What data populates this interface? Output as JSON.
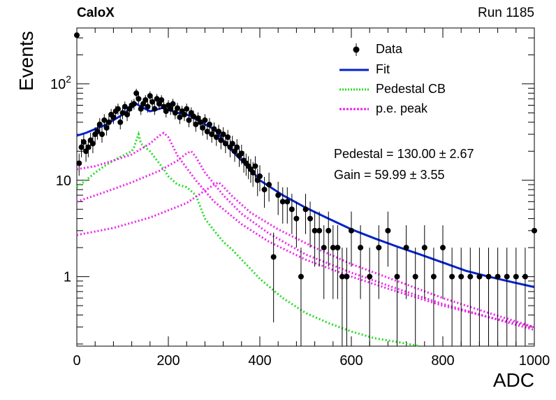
{
  "header": {
    "experiment": "CaloX",
    "run": "Run 1185"
  },
  "stats": {
    "pedestal": "Pedestal = 130.00 ± 2.67",
    "gain": "Gain = 59.99 ± 3.55"
  },
  "colors": {
    "data": "#000000",
    "fit": "#0022cc",
    "pedestal": "#22dd22",
    "pe": "#ee22ee"
  },
  "chart_data": {
    "type": "scatter",
    "xlabel": "ADC",
    "ylabel": "Events",
    "xlim": [
      0,
      1000
    ],
    "ylim": [
      0.19,
      380
    ],
    "y_scale": "log",
    "x_ticks": [
      0,
      200,
      400,
      600,
      800,
      1000
    ],
    "x_tick_labels": [
      "0",
      "200",
      "400",
      "600",
      "800",
      "1000"
    ],
    "y_ticks": [
      1,
      10,
      100
    ],
    "y_tick_labels": [
      "1",
      "10",
      "10²"
    ],
    "legend": {
      "position": "top-right",
      "entries": [
        {
          "label": "Data",
          "style": "marker-errorbar"
        },
        {
          "label": "Fit",
          "style": "solid-line"
        },
        {
          "label": "Pedestal CB",
          "style": "dotted-line"
        },
        {
          "label": "p.e. peak",
          "style": "dotted-line"
        }
      ]
    },
    "series": [
      {
        "name": "Data",
        "kind": "points",
        "x": [
          0,
          5,
          10,
          15,
          20,
          25,
          30,
          35,
          40,
          45,
          50,
          55,
          60,
          65,
          70,
          75,
          80,
          85,
          90,
          95,
          100,
          105,
          110,
          115,
          120,
          125,
          130,
          135,
          140,
          145,
          150,
          155,
          160,
          165,
          170,
          175,
          180,
          185,
          190,
          195,
          200,
          205,
          210,
          215,
          220,
          225,
          230,
          235,
          240,
          245,
          250,
          255,
          260,
          265,
          270,
          275,
          280,
          285,
          290,
          295,
          300,
          305,
          310,
          315,
          320,
          325,
          330,
          335,
          340,
          345,
          350,
          355,
          360,
          365,
          370,
          375,
          380,
          385,
          390,
          395,
          400,
          410,
          420,
          430,
          440,
          450,
          460,
          470,
          480,
          490,
          500,
          510,
          520,
          530,
          540,
          550,
          560,
          570,
          580,
          590,
          600,
          620,
          640,
          660,
          680,
          700,
          720,
          740,
          760,
          780,
          800,
          820,
          840,
          860,
          880,
          900,
          920,
          940,
          960,
          980,
          1000
        ],
        "y": [
          320,
          15,
          22,
          25,
          20,
          22,
          26,
          24,
          30,
          32,
          38,
          30,
          42,
          35,
          40,
          48,
          45,
          52,
          55,
          40,
          50,
          58,
          48,
          55,
          60,
          62,
          80,
          70,
          55,
          62,
          68,
          58,
          75,
          65,
          55,
          70,
          62,
          68,
          58,
          52,
          60,
          55,
          62,
          50,
          56,
          45,
          52,
          48,
          55,
          42,
          50,
          46,
          38,
          44,
          40,
          35,
          42,
          32,
          38,
          30,
          34,
          28,
          32,
          26,
          30,
          24,
          28,
          22,
          24,
          20,
          22,
          18,
          19,
          16,
          15,
          14,
          13,
          12,
          14,
          10,
          11,
          8,
          9,
          1.6,
          7,
          6,
          6,
          5,
          4,
          1,
          5,
          4,
          3,
          3,
          2,
          3,
          2,
          2,
          1,
          1,
          3,
          2,
          1,
          2,
          3,
          1,
          2,
          1,
          2,
          1,
          2,
          1,
          1,
          1,
          1,
          1,
          1,
          1,
          1,
          1,
          3
        ]
      },
      {
        "name": "Fit",
        "kind": "line",
        "x": [
          0,
          20,
          40,
          60,
          80,
          100,
          120,
          130,
          140,
          160,
          180,
          190,
          200,
          220,
          240,
          250,
          260,
          280,
          300,
          310,
          320,
          340,
          360,
          380,
          400,
          450,
          500,
          550,
          600,
          650,
          700,
          750,
          800,
          850,
          900,
          950,
          1000
        ],
        "y": [
          29,
          31,
          34,
          37,
          42,
          48,
          57,
          62,
          58,
          52,
          55,
          57,
          54,
          50,
          48,
          46,
          43,
          38,
          34,
          30,
          26,
          20,
          16,
          13,
          10,
          7,
          5.2,
          4.0,
          3.1,
          2.5,
          2.05,
          1.7,
          1.4,
          1.15,
          1.0,
          0.88,
          0.78
        ]
      },
      {
        "name": "Pedestal CB",
        "kind": "dotted",
        "x": [
          0,
          20,
          40,
          60,
          80,
          100,
          120,
          125,
          130,
          135,
          140,
          160,
          180,
          190,
          200,
          220,
          240,
          260,
          280,
          300,
          320,
          340,
          360,
          380,
          400,
          450,
          500,
          550,
          600,
          650,
          700,
          750
        ],
        "y": [
          8.5,
          10,
          12,
          14,
          16,
          18,
          20,
          22,
          26,
          30,
          24,
          20,
          15,
          13,
          11,
          9,
          8.5,
          7,
          4,
          3,
          2.3,
          1.9,
          1.5,
          1.2,
          0.95,
          0.6,
          0.42,
          0.33,
          0.27,
          0.23,
          0.21,
          0.19
        ]
      },
      {
        "name": "p.e. peak 1",
        "kind": "dotted",
        "x": [
          0,
          40,
          80,
          120,
          160,
          180,
          190,
          200,
          220,
          260,
          300,
          360,
          420,
          500,
          600,
          700,
          800,
          900,
          1000
        ],
        "y": [
          13,
          14,
          16,
          18.5,
          24,
          29,
          31,
          28,
          18,
          10,
          6,
          3.5,
          2.3,
          1.5,
          1.0,
          0.7,
          0.5,
          0.38,
          0.3
        ]
      },
      {
        "name": "p.e. peak 2",
        "kind": "dotted",
        "x": [
          0,
          60,
          120,
          180,
          220,
          240,
          250,
          260,
          280,
          320,
          360,
          420,
          500,
          600,
          700,
          800,
          900,
          1000
        ],
        "y": [
          6,
          7.5,
          9.5,
          12.5,
          16,
          19,
          20,
          17.5,
          12,
          7,
          4.5,
          2.8,
          1.7,
          1.1,
          0.75,
          0.52,
          0.38,
          0.28
        ]
      },
      {
        "name": "p.e. peak 3",
        "kind": "dotted",
        "x": [
          0,
          80,
          160,
          240,
          280,
          300,
          310,
          320,
          340,
          380,
          440,
          520,
          600,
          700,
          800,
          900,
          1000
        ],
        "y": [
          2.7,
          3.2,
          4.1,
          5.8,
          7.8,
          9,
          9.5,
          8.6,
          6.8,
          4.6,
          3.1,
          2.0,
          1.35,
          0.9,
          0.6,
          0.42,
          0.3
        ]
      }
    ]
  }
}
